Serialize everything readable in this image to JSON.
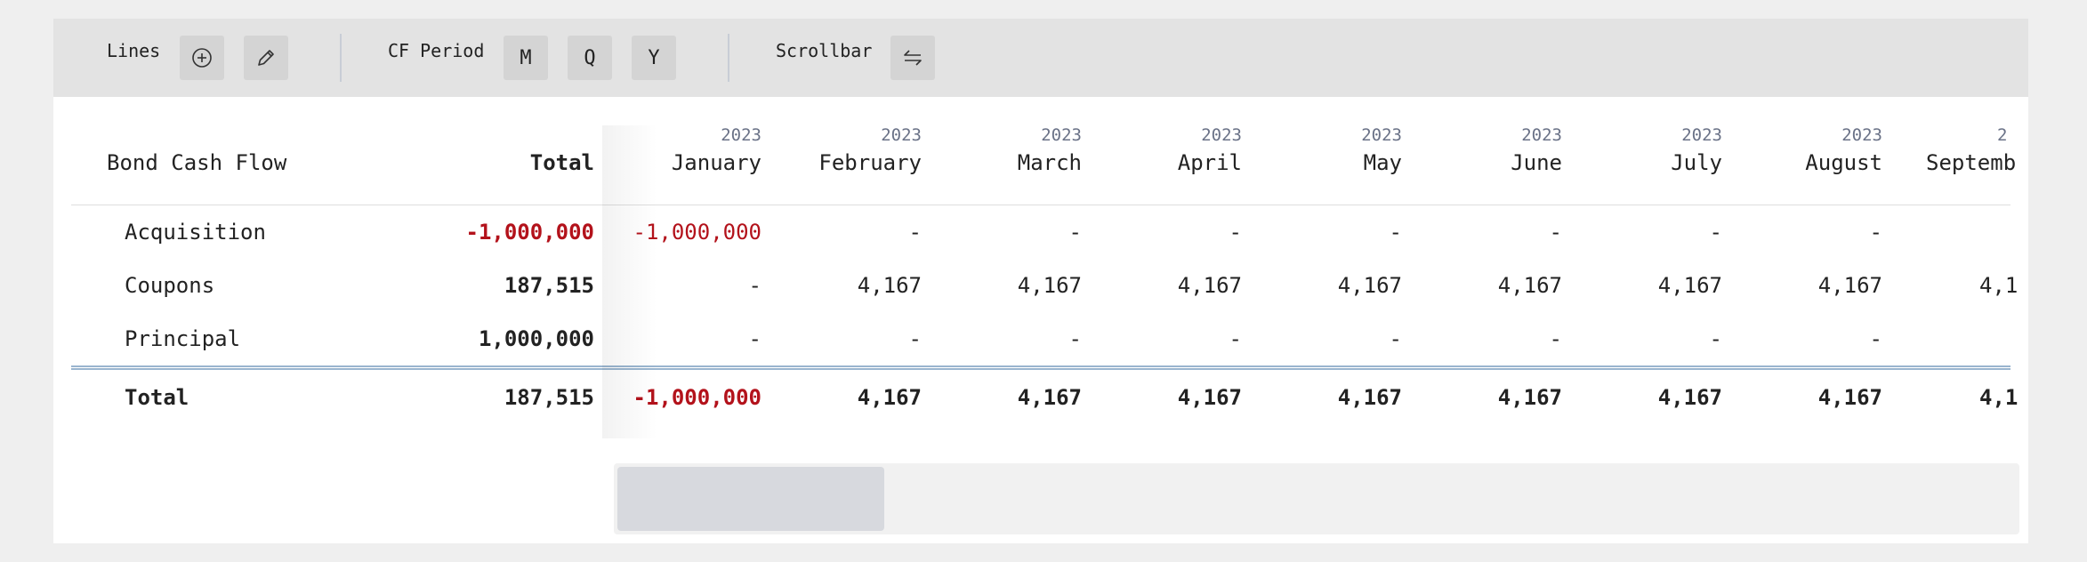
{
  "toolbar": {
    "lines_label": "Lines",
    "cf_period_label": "CF Period",
    "period_buttons": [
      "M",
      "Q",
      "Y"
    ],
    "scrollbar_label": "Scrollbar",
    "icons": [
      "add-circle-icon",
      "pencil-icon",
      "swap-arrows-icon"
    ]
  },
  "table": {
    "title": "Bond Cash Flow",
    "total_header": "Total",
    "columns": [
      {
        "year": "2023",
        "month": "January"
      },
      {
        "year": "2023",
        "month": "February"
      },
      {
        "year": "2023",
        "month": "March"
      },
      {
        "year": "2023",
        "month": "April"
      },
      {
        "year": "2023",
        "month": "May"
      },
      {
        "year": "2023",
        "month": "June"
      },
      {
        "year": "2023",
        "month": "July"
      },
      {
        "year": "2023",
        "month": "August"
      },
      {
        "year": "2",
        "month": "Septemb"
      }
    ],
    "rows": [
      {
        "label": "Acquisition",
        "total": "-1,000,000",
        "values": [
          "-1,000,000",
          "-",
          "-",
          "-",
          "-",
          "-",
          "-",
          "-",
          ""
        ]
      },
      {
        "label": "Coupons",
        "total": "187,515",
        "values": [
          "-",
          "4,167",
          "4,167",
          "4,167",
          "4,167",
          "4,167",
          "4,167",
          "4,167",
          "4,1"
        ]
      },
      {
        "label": "Principal",
        "total": "1,000,000",
        "values": [
          "-",
          "-",
          "-",
          "-",
          "-",
          "-",
          "-",
          "-",
          ""
        ]
      }
    ],
    "total_row": {
      "label": "Total",
      "total": "187,515",
      "values": [
        "-1,000,000",
        "4,167",
        "4,167",
        "4,167",
        "4,167",
        "4,167",
        "4,167",
        "4,167",
        "4,1"
      ]
    }
  },
  "colors": {
    "negative": "#b3121b",
    "year": "#6a7287",
    "toolbar_bg": "#e3e3e3",
    "double_rule": "#9ab5cf"
  }
}
